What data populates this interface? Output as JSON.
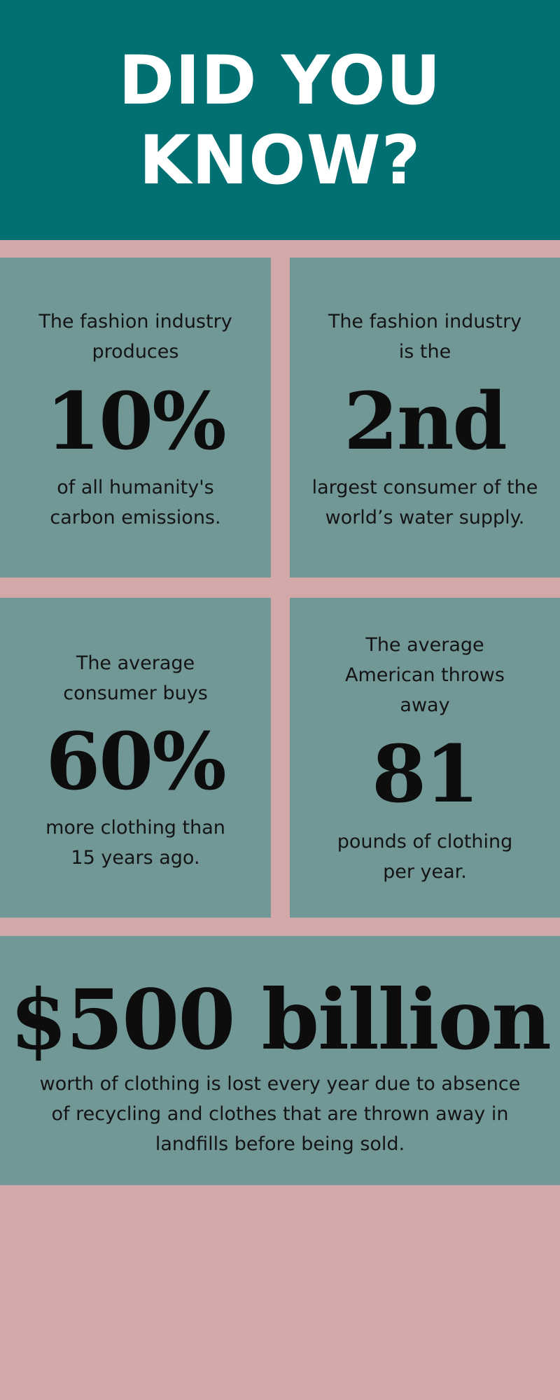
{
  "header": {
    "title": "DID YOU KNOW?"
  },
  "facts": [
    {
      "intro": "The fashion industry produces",
      "stat": "10%",
      "outro": "of all humanity's carbon emissions."
    },
    {
      "intro": "The fashion industry is the",
      "stat": "2nd",
      "outro": "largest consumer of the world’s water supply."
    },
    {
      "intro": "The average consumer buys",
      "stat": "60%",
      "outro": "more clothing than 15 years ago."
    },
    {
      "intro": "The average American throws away",
      "stat": "81",
      "outro": "pounds of clothing per year."
    }
  ],
  "highlight": {
    "stat": "$500 billion",
    "outro": "worth of clothing is lost every year due to absence of recycling and clothes that are thrown away in landfills before being sold."
  },
  "colors": {
    "header_bg": "#007073",
    "panel_bg": "#719897",
    "page_bg": "#d2a8a8"
  }
}
